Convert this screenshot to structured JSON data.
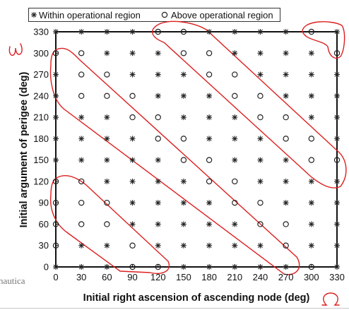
{
  "chart_data": {
    "type": "scatter",
    "title": "",
    "xlabel": "Initial right ascension of ascending node (deg)",
    "ylabel": "Initial argument of perigee (deg)",
    "xlim": [
      0,
      330
    ],
    "ylim": [
      0,
      330
    ],
    "x_ticks": [
      0,
      30,
      60,
      90,
      120,
      150,
      180,
      210,
      240,
      270,
      300,
      330
    ],
    "y_ticks": [
      0,
      30,
      60,
      90,
      120,
      150,
      180,
      210,
      240,
      270,
      300,
      330
    ],
    "grid": false,
    "legend_position": "top",
    "series": [
      {
        "name": "Within operational region",
        "marker": "asterisk",
        "color": "#222222"
      },
      {
        "name": "Above operational region",
        "marker": "circle",
        "color": "#222222"
      }
    ],
    "above_operational_points": [
      [
        90,
        0
      ],
      [
        120,
        0
      ],
      [
        300,
        0
      ],
      [
        0,
        30
      ],
      [
        90,
        30
      ],
      [
        270,
        30
      ],
      [
        0,
        60
      ],
      [
        30,
        60
      ],
      [
        60,
        60
      ],
      [
        240,
        60
      ],
      [
        270,
        60
      ],
      [
        0,
        90
      ],
      [
        30,
        90
      ],
      [
        60,
        90
      ],
      [
        210,
        90
      ],
      [
        240,
        90
      ],
      [
        0,
        120
      ],
      [
        30,
        120
      ],
      [
        180,
        120
      ],
      [
        210,
        120
      ],
      [
        150,
        150
      ],
      [
        180,
        150
      ],
      [
        300,
        150
      ],
      [
        330,
        150
      ],
      [
        120,
        180
      ],
      [
        150,
        180
      ],
      [
        270,
        180
      ],
      [
        300,
        180
      ],
      [
        90,
        210
      ],
      [
        120,
        210
      ],
      [
        240,
        210
      ],
      [
        270,
        210
      ],
      [
        30,
        240
      ],
      [
        60,
        240
      ],
      [
        90,
        240
      ],
      [
        210,
        240
      ],
      [
        240,
        240
      ],
      [
        30,
        270
      ],
      [
        60,
        270
      ],
      [
        180,
        270
      ],
      [
        210,
        270
      ],
      [
        0,
        300
      ],
      [
        30,
        300
      ],
      [
        150,
        300
      ],
      [
        180,
        300
      ],
      [
        330,
        300
      ],
      [
        120,
        330
      ],
      [
        150,
        330
      ],
      [
        300,
        330
      ]
    ],
    "annotations": [
      {
        "text": "ω",
        "kind": "handwritten"
      },
      {
        "text": "Ω",
        "kind": "handwritten"
      }
    ],
    "highlight_color": "#dd1f1f"
  },
  "caption_fragment": "nautica"
}
